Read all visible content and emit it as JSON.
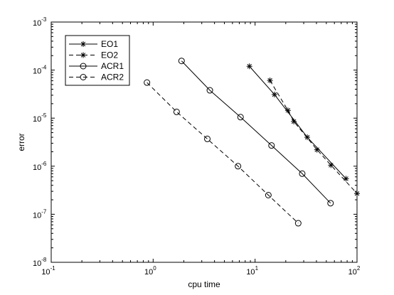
{
  "chart_data": {
    "type": "line",
    "title": "",
    "xlabel": "cpu time",
    "ylabel": "error",
    "xscale": "log",
    "yscale": "log",
    "xlim": [
      0.1,
      100
    ],
    "ylim": [
      1e-08,
      0.001
    ],
    "x_ticks": [
      {
        "value": 0.1,
        "base": "10",
        "exp": "-1"
      },
      {
        "value": 1,
        "base": "10",
        "exp": "0"
      },
      {
        "value": 10,
        "base": "10",
        "exp": "1"
      },
      {
        "value": 100,
        "base": "10",
        "exp": "2"
      }
    ],
    "y_ticks": [
      {
        "value": 1e-08,
        "base": "10",
        "exp": "-8"
      },
      {
        "value": 1e-07,
        "base": "10",
        "exp": "-7"
      },
      {
        "value": 1e-06,
        "base": "10",
        "exp": "-6"
      },
      {
        "value": 1e-05,
        "base": "10",
        "exp": "-5"
      },
      {
        "value": 0.0001,
        "base": "10",
        "exp": "-4"
      },
      {
        "value": 0.001,
        "base": "10",
        "exp": "-3"
      }
    ],
    "grid": false,
    "legend_position": "top-left",
    "series": [
      {
        "name": "EO1",
        "line_style": "solid",
        "marker": "asterisk",
        "x": [
          8.8,
          15.5,
          32.5,
          78
        ],
        "y": [
          0.00012,
          3.1e-05,
          4e-06,
          5.5e-07
        ]
      },
      {
        "name": "EO2",
        "line_style": "dashed",
        "marker": "asterisk",
        "x": [
          14.0,
          21.0,
          24.0,
          40.5,
          55.5,
          100
        ],
        "y": [
          6.1e-05,
          1.45e-05,
          8.5e-06,
          2.2e-06,
          1.05e-06,
          2.7e-07
        ]
      },
      {
        "name": "ACR1",
        "line_style": "solid",
        "marker": "circle",
        "x": [
          1.9,
          3.6,
          7.2,
          14.5,
          29.0,
          55.0
        ],
        "y": [
          0.000155,
          3.8e-05,
          1.05e-05,
          2.7e-06,
          7e-07,
          1.7e-07
        ]
      },
      {
        "name": "ACR2",
        "line_style": "dashed",
        "marker": "circle",
        "x": [
          0.87,
          1.7,
          3.4,
          6.8,
          13.5,
          26.5
        ],
        "y": [
          5.5e-05,
          1.35e-05,
          3.7e-06,
          1e-06,
          2.5e-07,
          6.5e-08
        ]
      }
    ],
    "colors": {
      "line": "#000000",
      "background": "#ffffff",
      "figure_background": "#ffffff"
    }
  }
}
